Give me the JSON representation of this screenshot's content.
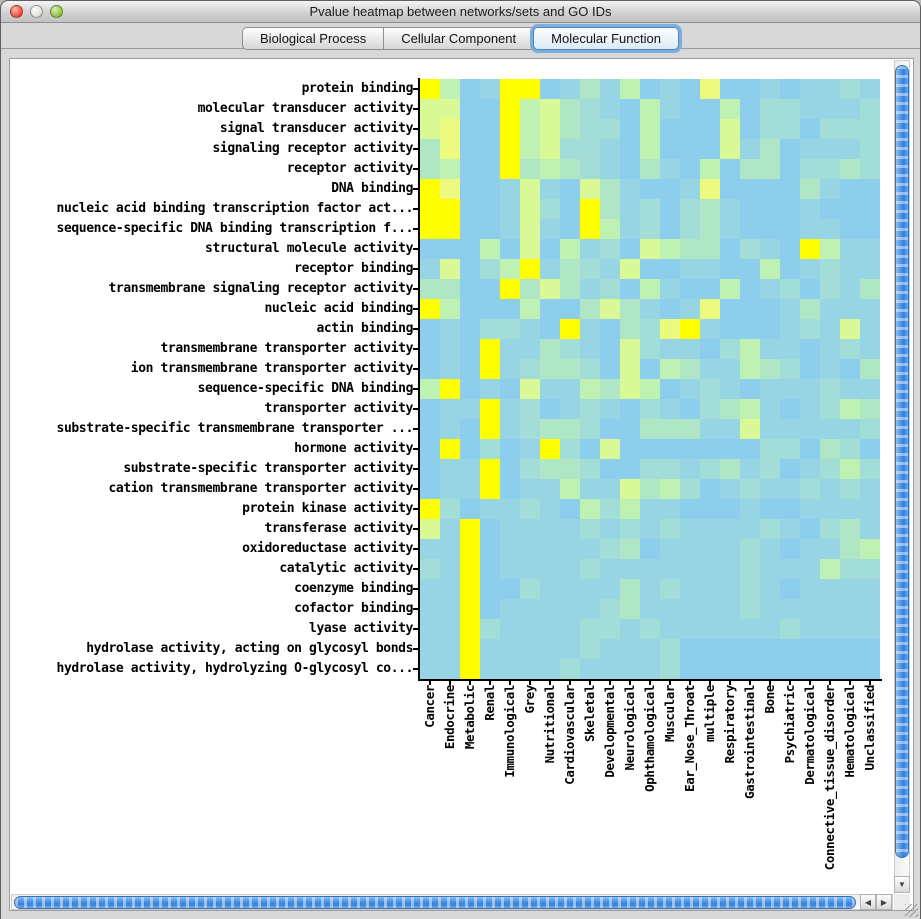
{
  "window": {
    "title": "Pvalue heatmap between networks/sets and GO IDs"
  },
  "tabs": [
    {
      "label": "Biological Process",
      "selected": false
    },
    {
      "label": "Cellular Component",
      "selected": false
    },
    {
      "label": "Molecular Function",
      "selected": true
    }
  ],
  "chart_data": {
    "type": "heatmap",
    "title": "Pvalue heatmap between networks/sets and GO IDs",
    "rows": [
      "protein binding",
      "molecular transducer activity",
      "signal transducer activity",
      "signaling receptor activity",
      "receptor activity",
      "DNA binding",
      "nucleic acid binding transcription factor act...",
      "sequence-specific DNA binding transcription f...",
      "structural molecule activity",
      "receptor binding",
      "transmembrane signaling receptor activity",
      "nucleic acid binding",
      "actin binding",
      "transmembrane transporter activity",
      "ion transmembrane transporter activity",
      "sequence-specific DNA binding",
      "transporter activity",
      "substrate-specific transmembrane transporter ...",
      "hormone activity",
      "substrate-specific transporter activity",
      "cation transmembrane transporter activity",
      "protein kinase activity",
      "transferase activity",
      "oxidoreductase activity",
      "catalytic activity",
      "coenzyme binding",
      "cofactor binding",
      "lyase activity",
      "hydrolase activity, acting on glycosyl bonds",
      "hydrolase activity, hydrolyzing O-glycosyl co..."
    ],
    "columns": [
      "Cancer",
      "Endocrine",
      "Metabolic",
      "Renal",
      "Immunological",
      "Grey",
      "Nutritional",
      "Cardiovascular",
      "Skeletal",
      "Developmental",
      "Neurological",
      "Ophthamological",
      "Muscular",
      "Ear_Nose_Throat",
      "multiple",
      "Respiratory",
      "Gastrointestinal",
      "Bone",
      "Psychiatric",
      "Dermatological",
      "Connective_tissue_disorder",
      "Hematological",
      "Unclassified"
    ],
    "palette": [
      "#8CCEEC",
      "#97D5E5",
      "#A3DDD7",
      "#AFE6C6",
      "#BEF1B2",
      "#D9F896",
      "#ECFB7D",
      "#FFFF00"
    ],
    "palette_meaning": "0 = light blue (weakest significance) through 7 = bright yellow (strongest significance)",
    "grid": [
      "74017701314010600101121",
      "55007453210410040221112",
      "56007453220400050220222",
      "36007452210400051301112",
      "34007343210310403302232",
      "76001510531001600003100",
      "77001520731202310001000",
      "77001510741202310001100",
      "00040504120543302107411",
      "15024713215001100401211",
      "33007353120410040120213",
      "74000400353101600013111",
      "01022107103267100012151",
      "01071132105211024110121",
      "01071233205043114320103",
      "47010511435401210111211",
      "01171201210210234101243",
      "01071233200333115111112",
      "07020172050000000220320",
      "01170233200221231201242",
      "01170114115342012112121",
      "72011210424110001001111",
      "51701111212121111210231",
      "11701111123011112101134",
      "21701111211111112111422",
      "11700211113121112101111",
      "11701111123111112111111",
      "11721111221211111121111",
      "11711111211120000000000",
      "11711112111120000000000"
    ]
  },
  "scrollbars": {
    "vertical": {
      "down_arrow": "▼"
    },
    "horizontal": {
      "left_arrow": "◀",
      "right_arrow": "▶"
    }
  }
}
